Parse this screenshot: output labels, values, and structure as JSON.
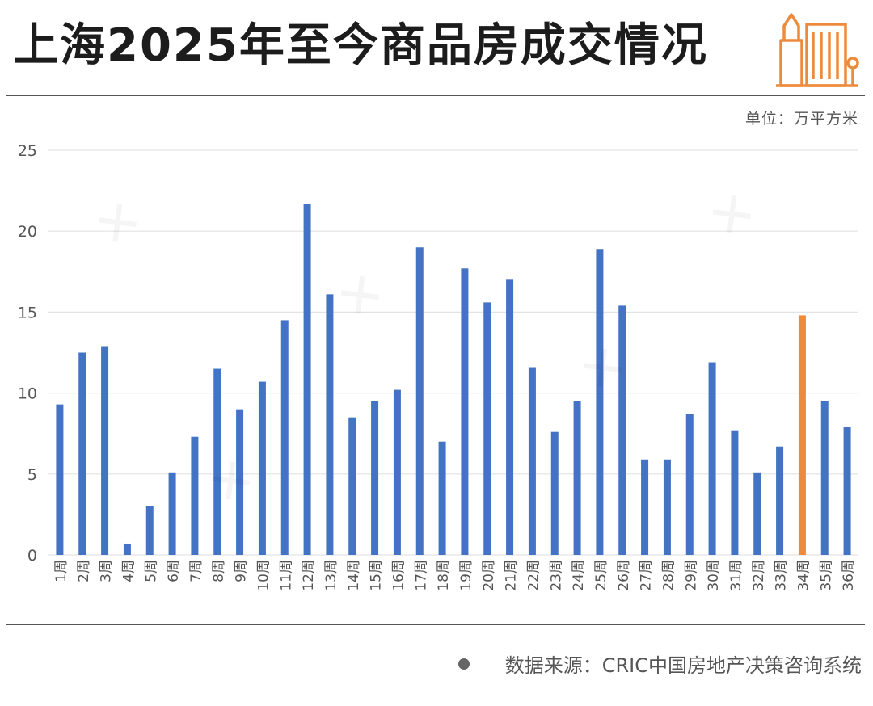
{
  "header": {
    "title": "上海2025年至今商品房成交情况",
    "icon": "building-icon"
  },
  "unit_label": "单位：万平方米",
  "source": "数据来源：CRIC中国房地产决策咨询系统",
  "colors": {
    "bar": "#4472c4",
    "highlight": "#ed8b3d",
    "grid": "#e3e3e3",
    "text": "#555555"
  },
  "chart_data": {
    "type": "bar",
    "categories": [
      "1周",
      "2周",
      "3周",
      "4周",
      "5周",
      "6周",
      "7周",
      "8周",
      "9周",
      "10周",
      "11周",
      "12周",
      "13周",
      "14周",
      "15周",
      "16周",
      "17周",
      "18周",
      "19周",
      "20周",
      "21周",
      "22周",
      "23周",
      "24周",
      "25周",
      "26周",
      "27周",
      "28周",
      "29周",
      "30周",
      "31周",
      "32周",
      "33周",
      "34周",
      "35周",
      "36周"
    ],
    "values": [
      9.3,
      12.5,
      12.9,
      0.7,
      3.0,
      5.1,
      7.3,
      11.5,
      9.0,
      10.7,
      14.5,
      21.7,
      16.1,
      8.5,
      9.5,
      10.2,
      19.0,
      7.0,
      17.7,
      15.6,
      17.0,
      11.6,
      7.6,
      9.5,
      18.9,
      15.4,
      5.9,
      5.9,
      8.7,
      11.9,
      7.7,
      5.1,
      6.7,
      14.8,
      9.5,
      7.9
    ],
    "highlight_category": "34周",
    "title": "",
    "xlabel": "",
    "ylabel": "",
    "ylim": [
      0,
      25
    ],
    "yticks": [
      0,
      5,
      10,
      15,
      20,
      25
    ],
    "grid": true,
    "legend": "none"
  }
}
